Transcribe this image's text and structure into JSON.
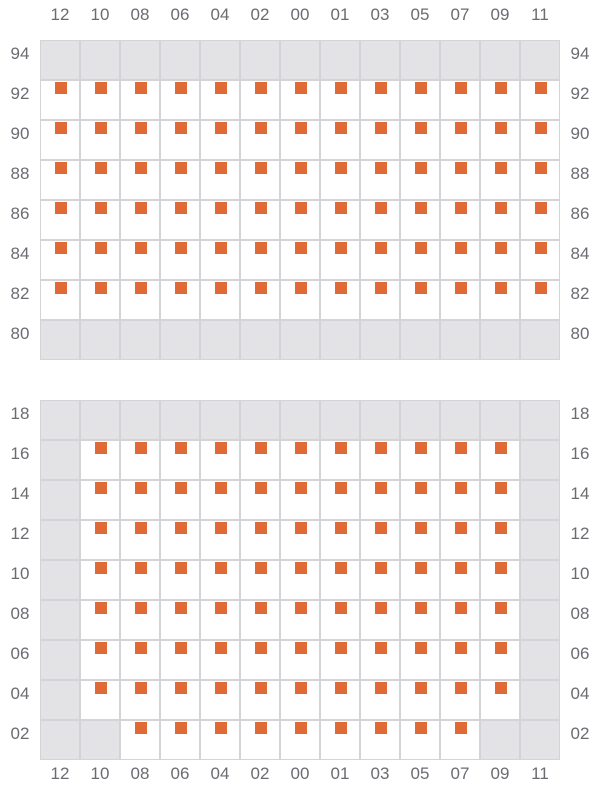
{
  "colors": {
    "marked": "#e06a35",
    "blocked": "#e3e3e5",
    "grid_line": "#d4d4d8",
    "label": "#6b6b72"
  },
  "columns": [
    "12",
    "10",
    "08",
    "06",
    "04",
    "02",
    "00",
    "01",
    "03",
    "05",
    "07",
    "09",
    "11"
  ],
  "sections": [
    {
      "rows": [
        {
          "label": "94",
          "cells": "xxxxxxxxxxxxx"
        },
        {
          "label": "92",
          "cells": "mmmmmmmmmmmmm"
        },
        {
          "label": "90",
          "cells": "mmmmmmmmmmmmm"
        },
        {
          "label": "88",
          "cells": "mmmmmmmmmmmmm"
        },
        {
          "label": "86",
          "cells": "mmmmmmmmmmmmm"
        },
        {
          "label": "84",
          "cells": "mmmmmmmmmmmmm"
        },
        {
          "label": "82",
          "cells": "mmmmmmmmmmmmm"
        },
        {
          "label": "80",
          "cells": "xxxxxxxxxxxxx"
        }
      ]
    },
    {
      "rows": [
        {
          "label": "18",
          "cells": "xxxxxxxxxxxxx"
        },
        {
          "label": "16",
          "cells": "xmmmmmmmmmmmx"
        },
        {
          "label": "14",
          "cells": "xmmmmmmmmmmmx"
        },
        {
          "label": "12",
          "cells": "xmmmmmmmmmmmx"
        },
        {
          "label": "10",
          "cells": "xmmmmmmmmmmmx"
        },
        {
          "label": "08",
          "cells": "xmmmmmmmmmmmx"
        },
        {
          "label": "06",
          "cells": "xmmmmmmmmmmmx"
        },
        {
          "label": "04",
          "cells": "xmmmmmmmmmmmx"
        },
        {
          "label": "02",
          "cells": "xxmmmmmmmmmxx"
        }
      ]
    }
  ],
  "legend_codes": {
    "x": "blocked",
    "m": "marked"
  }
}
